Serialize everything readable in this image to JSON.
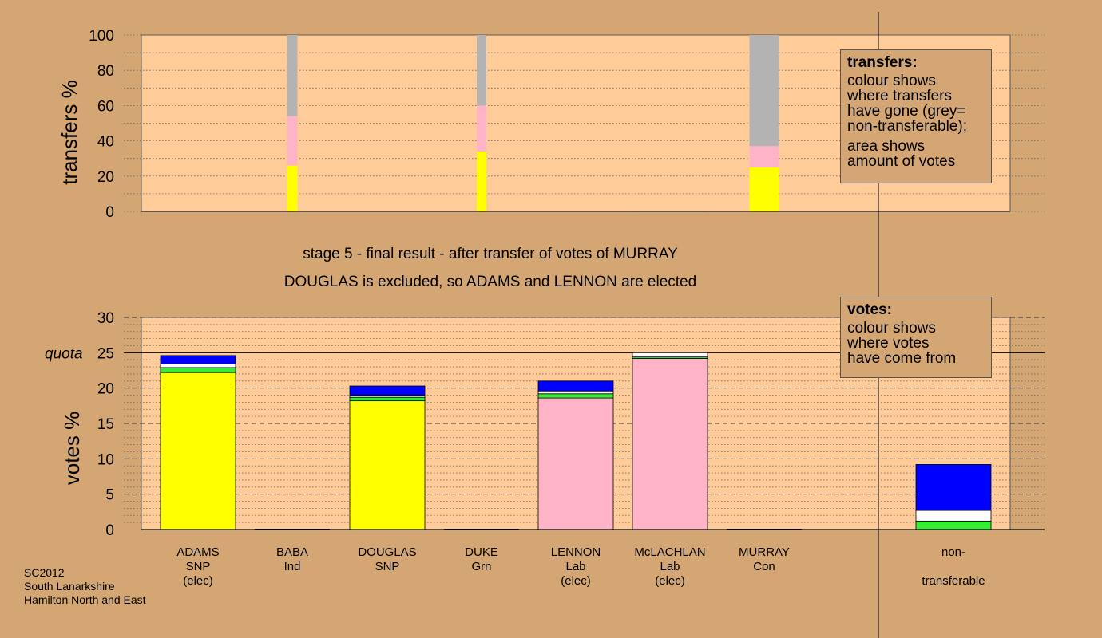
{
  "headings": {
    "stage": "stage 5 - final result - after transfer of votes of MURRAY",
    "result": "DOUGLAS is excluded, so ADAMS and LENNON are elected"
  },
  "footer": {
    "lines": [
      "SC2012",
      "South Lanarkshire",
      "Hamilton North and East"
    ]
  },
  "transfers_box": {
    "title": "transfers:",
    "lines": [
      "colour shows",
      "where transfers",
      "have gone (grey=",
      "non-transferable);"
    ],
    "lines2": [
      "area shows",
      "amount of votes"
    ]
  },
  "votes_box": {
    "title": "votes:",
    "lines": [
      "colour shows",
      "where votes",
      "have come from"
    ]
  },
  "colors": {
    "background": "#d3a673",
    "plot_bg": "#ffcc99",
    "snp": "#ffff00",
    "lab": "#ffb3c6",
    "grn": "#33ee33",
    "ind": "#ffffff",
    "con": "#0000ff",
    "nontransferable": "#b3b3b3"
  },
  "chart_data": [
    {
      "type": "bar",
      "stacked": true,
      "ylabel": "transfers %",
      "ylim": [
        0,
        100
      ],
      "yticks": [
        0,
        20,
        40,
        60,
        80,
        100
      ],
      "categories": [
        "ADAMS",
        "BABA",
        "DOUGLAS",
        "DUKE",
        "LENNON",
        "McLACHLAN",
        "MURRAY"
      ],
      "bars": [
        {
          "category": "BABA",
          "segments": [
            {
              "to": "SNP",
              "color": "#ffff00",
              "value": 26
            },
            {
              "to": "Lab",
              "color": "#ffb3c6",
              "value": 28
            },
            {
              "to": "non-transferable",
              "color": "#b3b3b3",
              "value": 46
            }
          ]
        },
        {
          "category": "DUKE",
          "segments": [
            {
              "to": "SNP",
              "color": "#ffff00",
              "value": 34
            },
            {
              "to": "Lab",
              "color": "#ffb3c6",
              "value": 26
            },
            {
              "to": "non-transferable",
              "color": "#b3b3b3",
              "value": 40
            }
          ]
        },
        {
          "category": "McLACHLAN",
          "segments": [
            {
              "to": "non-transferable",
              "color": "#b3b3b3",
              "value": 0.3
            }
          ]
        },
        {
          "category": "MURRAY",
          "segments": [
            {
              "to": "SNP",
              "color": "#ffff00",
              "value": 25
            },
            {
              "to": "Lab",
              "color": "#ffb3c6",
              "value": 12
            },
            {
              "to": "non-transferable",
              "color": "#b3b3b3",
              "value": 63
            }
          ]
        }
      ]
    },
    {
      "type": "bar",
      "stacked": true,
      "ylabel": "votes %",
      "ylim": [
        0,
        30
      ],
      "yticks": [
        0,
        5,
        10,
        15,
        20,
        25,
        30
      ],
      "quota": 25,
      "quota_label": "quota",
      "categories": [
        "ADAMS",
        "BABA",
        "DOUGLAS",
        "DUKE",
        "LENNON",
        "McLACHLAN",
        "MURRAY",
        "non-transferable"
      ],
      "category_labels": [
        [
          "ADAMS",
          "SNP",
          "(elec)"
        ],
        [
          "BABA",
          "Ind"
        ],
        [
          "DOUGLAS",
          "SNP"
        ],
        [
          "DUKE",
          "Grn"
        ],
        [
          "LENNON",
          "Lab",
          "(elec)"
        ],
        [
          "McLACHLAN",
          "Lab",
          "(elec)"
        ],
        [
          "MURRAY",
          "Con"
        ],
        [
          "non-",
          "",
          "transferable"
        ]
      ],
      "bars": [
        {
          "category": "ADAMS",
          "segments": [
            {
              "from": "SNP",
              "color": "#ffff00",
              "value": 22.2
            },
            {
              "from": "Grn",
              "color": "#33ee33",
              "value": 0.7
            },
            {
              "from": "Ind",
              "color": "#ffffff",
              "value": 0.5
            },
            {
              "from": "Con",
              "color": "#0000ff",
              "value": 1.2
            }
          ]
        },
        {
          "category": "BABA",
          "segments": []
        },
        {
          "category": "DOUGLAS",
          "segments": [
            {
              "from": "SNP",
              "color": "#ffff00",
              "value": 18.2
            },
            {
              "from": "Grn",
              "color": "#33ee33",
              "value": 0.5
            },
            {
              "from": "Ind",
              "color": "#ffffff",
              "value": 0.3
            },
            {
              "from": "Con",
              "color": "#0000ff",
              "value": 1.3
            }
          ]
        },
        {
          "category": "DUKE",
          "segments": []
        },
        {
          "category": "LENNON",
          "segments": [
            {
              "from": "Lab",
              "color": "#ffb3c6",
              "value": 18.6
            },
            {
              "from": "Grn",
              "color": "#33ee33",
              "value": 0.6
            },
            {
              "from": "Ind",
              "color": "#ffffff",
              "value": 0.4
            },
            {
              "from": "Con",
              "color": "#0000ff",
              "value": 1.4
            }
          ]
        },
        {
          "category": "McLACHLAN",
          "segments": [
            {
              "from": "Lab",
              "color": "#ffb3c6",
              "value": 24.2
            },
            {
              "from": "Grn",
              "color": "#33ee33",
              "value": 0.2
            },
            {
              "from": "Ind",
              "color": "#ffffff",
              "value": 0.6
            }
          ]
        },
        {
          "category": "MURRAY",
          "segments": []
        },
        {
          "category": "non-transferable",
          "segments": [
            {
              "from": "Grn",
              "color": "#33ee33",
              "value": 1.2
            },
            {
              "from": "Ind",
              "color": "#ffffff",
              "value": 1.5
            },
            {
              "from": "Con",
              "color": "#0000ff",
              "value": 6.5
            }
          ]
        }
      ]
    }
  ]
}
